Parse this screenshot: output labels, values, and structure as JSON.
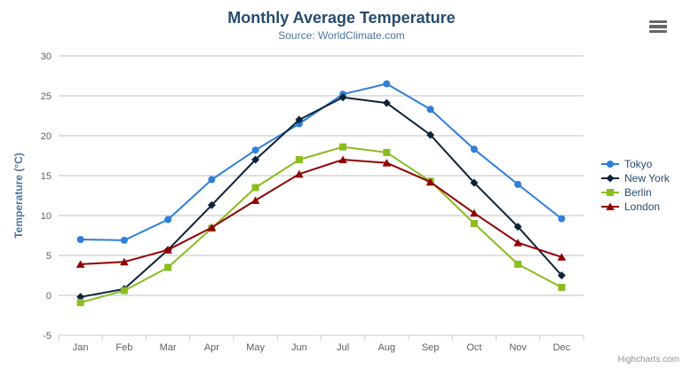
{
  "chart_data": {
    "type": "line",
    "title": "Monthly Average Temperature",
    "subtitle": "Source: WorldClimate.com",
    "categories": [
      "Jan",
      "Feb",
      "Mar",
      "Apr",
      "May",
      "Jun",
      "Jul",
      "Aug",
      "Sep",
      "Oct",
      "Nov",
      "Dec"
    ],
    "series": [
      {
        "name": "Tokyo",
        "color": "#2f7ed8",
        "marker": "circle",
        "values": [
          7.0,
          6.9,
          9.5,
          14.5,
          18.2,
          21.5,
          25.2,
          26.5,
          23.3,
          18.3,
          13.9,
          9.6
        ]
      },
      {
        "name": "New York",
        "color": "#0d233a",
        "marker": "diamond",
        "values": [
          -0.2,
          0.8,
          5.7,
          11.3,
          17.0,
          22.0,
          24.8,
          24.1,
          20.1,
          14.1,
          8.6,
          2.5
        ]
      },
      {
        "name": "Berlin",
        "color": "#8bbc21",
        "marker": "square",
        "values": [
          -0.9,
          0.6,
          3.5,
          8.4,
          13.5,
          17.0,
          18.6,
          17.9,
          14.3,
          9.0,
          3.9,
          1.0
        ]
      },
      {
        "name": "London",
        "color": "#910000",
        "marker": "triangle",
        "values": [
          3.9,
          4.2,
          5.7,
          8.5,
          11.9,
          15.2,
          17.0,
          16.6,
          14.2,
          10.3,
          6.6,
          4.8
        ]
      }
    ],
    "xlabel": "",
    "ylabel": "Temperature (°C)",
    "ylim": [
      -5,
      30
    ],
    "ytick_step": 5,
    "yticks": [
      -5,
      0,
      5,
      10,
      15,
      20,
      25,
      30
    ],
    "grid": true,
    "legend_position": "right-middle",
    "colors": {
      "title": "#274b6d",
      "subtitle": "#4d759e",
      "axis_title": "#4d759e",
      "tick_label": "#606060",
      "gridline": "#c0c0c0",
      "axis_line": "#c0d0e0",
      "legend_text": "#274b6d",
      "credit_text": "#909090",
      "menu_icon": "#666666"
    }
  },
  "credits": {
    "label": "Highcharts.com"
  },
  "export_menu": {
    "tooltip": "Chart context menu"
  }
}
